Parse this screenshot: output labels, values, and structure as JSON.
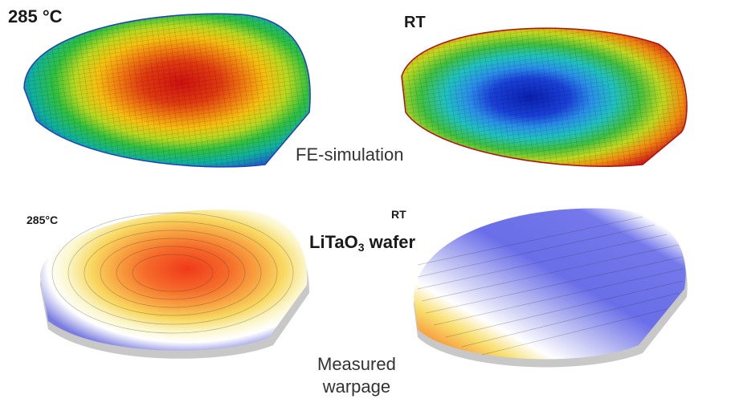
{
  "labels": {
    "fe_hot_temp": "285 °C",
    "fe_rt": "RT",
    "fe_simulation": "FE-simulation",
    "meas_hot_temp": "285°C",
    "meas_rt": "RT",
    "wafer_prefix": "LiTaO",
    "wafer_subscript": "3",
    "wafer_suffix": " wafer",
    "measured_line1": "Measured",
    "measured_line2": "warpage"
  },
  "colors": {
    "fe_hot_center": "#d01010",
    "fe_rt_center": "#0a1fb0",
    "meas_hot_center": "#f03a1a",
    "meas_rt_base": "#6a6ee8"
  }
}
